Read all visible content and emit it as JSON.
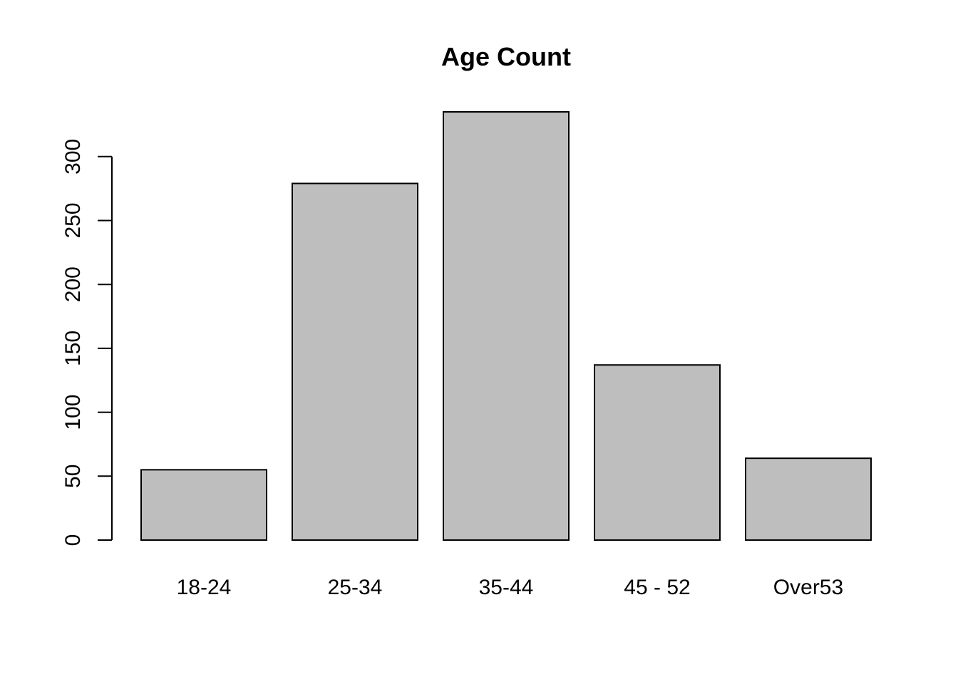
{
  "chart_data": {
    "type": "bar",
    "title": "Age Count",
    "xlabel": "",
    "ylabel": "",
    "categories": [
      "18-24",
      "25-34",
      "35-44",
      "45 - 52",
      "Over53"
    ],
    "values": [
      55,
      279,
      335,
      137,
      64
    ],
    "ylim": [
      0,
      335
    ],
    "yticks": [
      0,
      50,
      100,
      150,
      200,
      250,
      300
    ],
    "ytick_labels": [
      "0",
      "50",
      "100",
      "150",
      "200",
      "250",
      "300"
    ],
    "grid": false,
    "legend": "none",
    "colors": {
      "bar_fill": "#bebebe",
      "bar_border": "#000000",
      "background": "#ffffff"
    }
  }
}
